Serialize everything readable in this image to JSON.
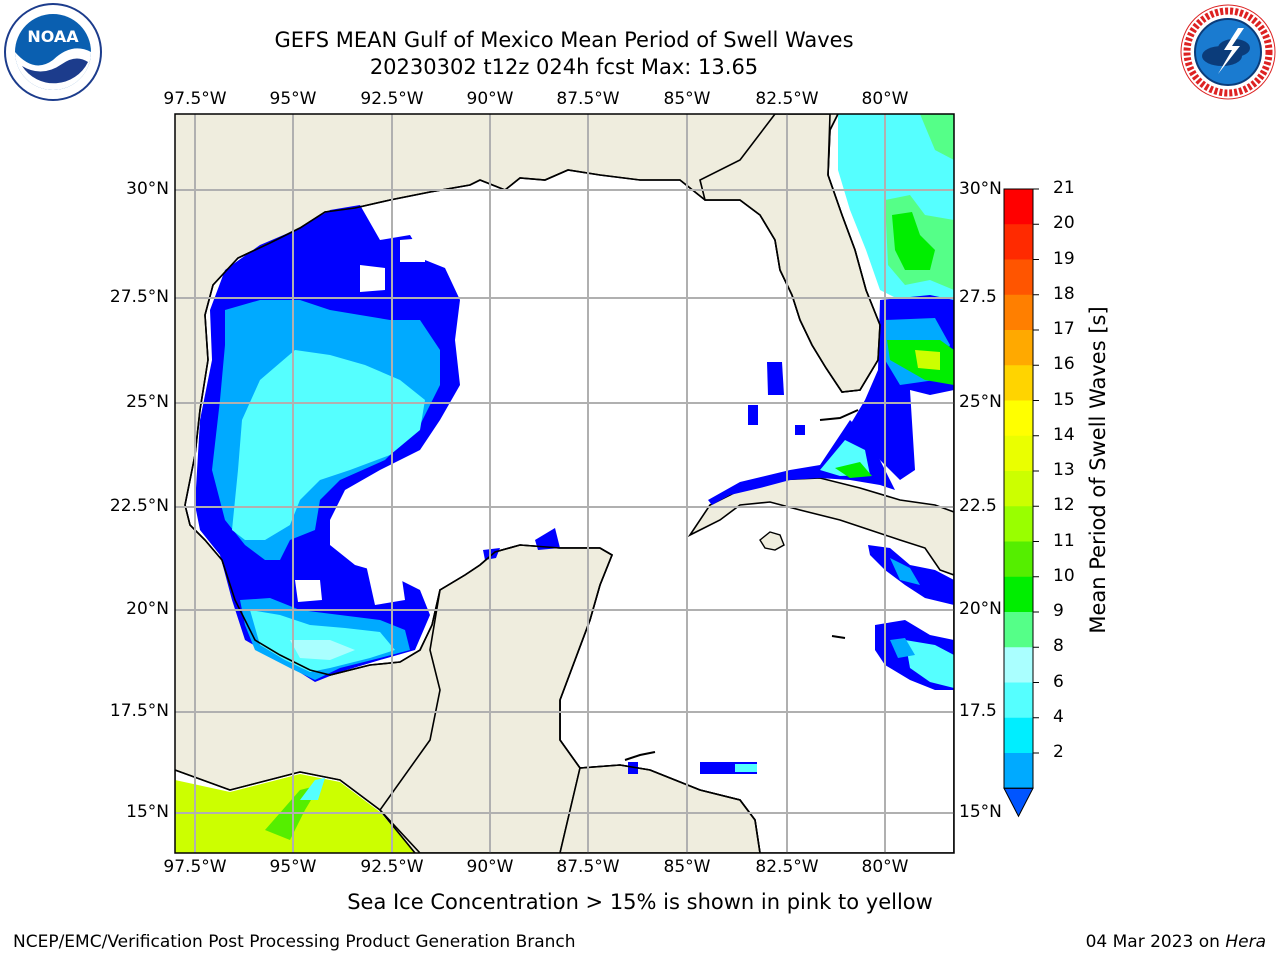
{
  "title": {
    "line1": "GEFS MEAN Gulf of Mexico Mean Period of Swell Waves",
    "line2": "20230302 t12z 024h fcst   Max: 13.65"
  },
  "map": {
    "lon_labels": [
      "97.5°W",
      "95°W",
      "92.5°W",
      "90°W",
      "87.5°W",
      "85°W",
      "82.5°W",
      "80°W"
    ],
    "lat_labels_left": [
      "30°N",
      "27.5°N",
      "25°N",
      "22.5°N",
      "20°N",
      "17.5°N",
      "15°N"
    ],
    "lat_labels_right": [
      "30°N",
      "27.5",
      "25°N",
      "22.5",
      "20°N",
      "17.5",
      "15°N"
    ],
    "land_color": "#efedde",
    "grid_color": "#b0b0b0"
  },
  "colorbar": {
    "label": "Mean Period of Swell Waves [s]",
    "ticks": [
      "21",
      "20",
      "19",
      "18",
      "17",
      "16",
      "15",
      "14",
      "13",
      "12",
      "11",
      "10",
      "9",
      "8",
      "6",
      "4",
      "2"
    ],
    "colors": [
      "#ff0000",
      "#ff2a00",
      "#ff5500",
      "#ff7f00",
      "#ffa900",
      "#ffd400",
      "#ffff00",
      "#eaff00",
      "#ccff00",
      "#99ff00",
      "#55ee00",
      "#00ee00",
      "#55ff88",
      "#aaffff",
      "#55ffff",
      "#00eeff",
      "#00aaff",
      "#0055ff"
    ]
  },
  "footer": {
    "note": "Sea Ice Concentration > 15% is shown in pink to yellow",
    "credit": "NCEP/EMC/Verification Post Processing Product Generation Branch",
    "date": "04 Mar 2023 on ",
    "host": "Hera"
  },
  "logos": {
    "noaa_text": "NOAA",
    "nws_text": "NATIONAL WEATHER SERVICE"
  }
}
